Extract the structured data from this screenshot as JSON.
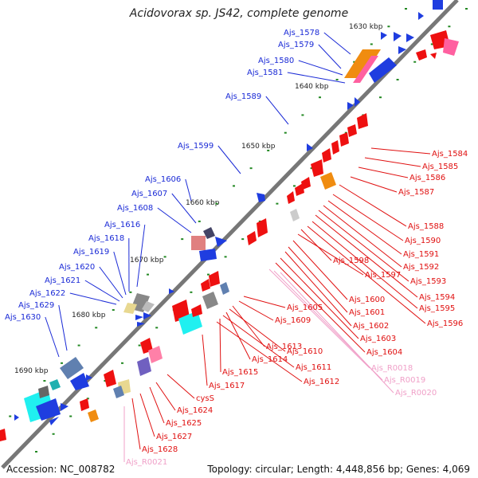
{
  "title": "Acidovorax sp. JS42, complete genome",
  "footer": {
    "accession": "Accession: NC_008782",
    "summary": "Topology: circular; Length: 4,448,856 bp; Genes: 4,069"
  },
  "colors": {
    "backbone": "#777777",
    "tick": "#228822",
    "plus_label": "#1a2ad6",
    "minus_label": "#e01010",
    "rna_label": "#f0a0c8"
  },
  "scale_labels": [
    "1630 kbp",
    "1640 kbp",
    "1650 kbp",
    "1660 kbp",
    "1670 kbp",
    "1680 kbp",
    "1690 kbp"
  ],
  "plus_genes": [
    "Ajs_1578",
    "Ajs_1579",
    "Ajs_1580",
    "Ajs_1581",
    "Ajs_1589",
    "Ajs_1599",
    "Ajs_1606",
    "Ajs_1607",
    "Ajs_1608",
    "Ajs_1616",
    "Ajs_1618",
    "Ajs_1619",
    "Ajs_1620",
    "Ajs_1621",
    "Ajs_1622",
    "Ajs_1629",
    "Ajs_1630"
  ],
  "minus_genes": [
    "Ajs_1584",
    "Ajs_1585",
    "Ajs_1586",
    "Ajs_1587",
    "Ajs_1588",
    "Ajs_1590",
    "Ajs_1591",
    "Ajs_1592",
    "Ajs_1593",
    "Ajs_1594",
    "Ajs_1595",
    "Ajs_1596",
    "Ajs_1598",
    "Ajs_1597",
    "Ajs_1600",
    "Ajs_1601",
    "Ajs_1602",
    "Ajs_1603",
    "Ajs_1604",
    "Ajs_1605",
    "Ajs_1609",
    "Ajs_1613",
    "Ajs_1610",
    "Ajs_1614",
    "Ajs_1611",
    "Ajs_1615",
    "Ajs_1612",
    "Ajs_1617",
    "cysS",
    "Ajs_1624",
    "Ajs_1625",
    "Ajs_1627",
    "Ajs_1628"
  ],
  "rna_genes": [
    "Ajs_R0018",
    "Ajs_R0019",
    "Ajs_R0020",
    "Ajs_R0021"
  ]
}
